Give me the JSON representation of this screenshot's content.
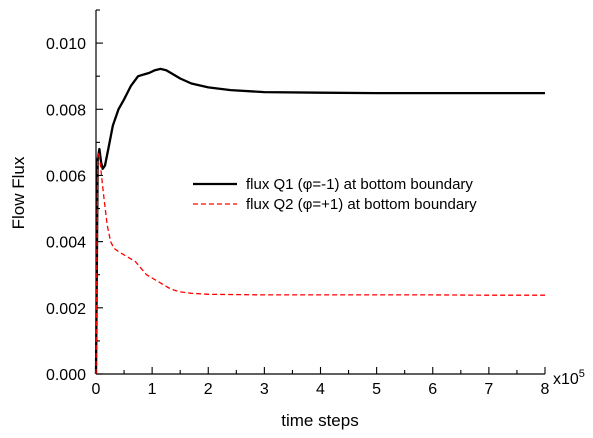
{
  "chart_data": {
    "type": "line",
    "title": "",
    "xlabel": "time steps",
    "ylabel": "Flow Flux",
    "x_multiplier_label": "x10",
    "x_multiplier_exp": "5",
    "xlim": [
      0,
      8
    ],
    "ylim": [
      0,
      0.011
    ],
    "xticks": [
      0,
      1,
      2,
      3,
      4,
      5,
      6,
      7,
      8
    ],
    "xtick_labels": [
      "0",
      "1",
      "2",
      "3",
      "4",
      "5",
      "6",
      "7",
      "8"
    ],
    "yticks": [
      0,
      0.002,
      0.004,
      0.006,
      0.008,
      0.01
    ],
    "ytick_labels": [
      "0.000",
      "0.002",
      "0.004",
      "0.006",
      "0.008",
      "0.010"
    ],
    "grid": false,
    "legend_position": "center-right",
    "series": [
      {
        "name": "flux Q1 (φ=-1) at bottom boundary",
        "color": "#000000",
        "style": "solid",
        "x": [
          0,
          0.03,
          0.06,
          0.09,
          0.12,
          0.16,
          0.22,
          0.3,
          0.4,
          0.5,
          0.62,
          0.75,
          0.85,
          0.95,
          1.05,
          1.15,
          1.25,
          1.35,
          1.5,
          1.7,
          2.0,
          2.4,
          3.0,
          4.0,
          5.0,
          6.0,
          7.0,
          8.0
        ],
        "y": [
          0,
          0.0065,
          0.0068,
          0.0064,
          0.0062,
          0.0063,
          0.0068,
          0.0075,
          0.008,
          0.0083,
          0.0087,
          0.009,
          0.00905,
          0.0091,
          0.00918,
          0.00922,
          0.00918,
          0.00908,
          0.00893,
          0.00878,
          0.00866,
          0.00858,
          0.00852,
          0.0085,
          0.00849,
          0.00849,
          0.00849,
          0.00849
        ]
      },
      {
        "name": "flux Q2 (φ=+1) at bottom boundary",
        "color": "#ff0000",
        "style": "dashed",
        "x": [
          0,
          0.03,
          0.05,
          0.08,
          0.11,
          0.15,
          0.2,
          0.26,
          0.32,
          0.4,
          0.5,
          0.6,
          0.7,
          0.8,
          0.9,
          1.0,
          1.1,
          1.2,
          1.3,
          1.4,
          1.5,
          1.7,
          2.0,
          2.5,
          3.0,
          4.0,
          5.0,
          6.0,
          7.0,
          8.0
        ],
        "y": [
          0,
          0.0066,
          0.0067,
          0.0063,
          0.0058,
          0.0052,
          0.0045,
          0.004,
          0.0038,
          0.0037,
          0.0036,
          0.0035,
          0.0034,
          0.0032,
          0.003,
          0.0029,
          0.0028,
          0.0027,
          0.0026,
          0.00253,
          0.00248,
          0.00244,
          0.00241,
          0.0024,
          0.00239,
          0.00239,
          0.00239,
          0.00239,
          0.00238,
          0.00238
        ]
      }
    ]
  }
}
